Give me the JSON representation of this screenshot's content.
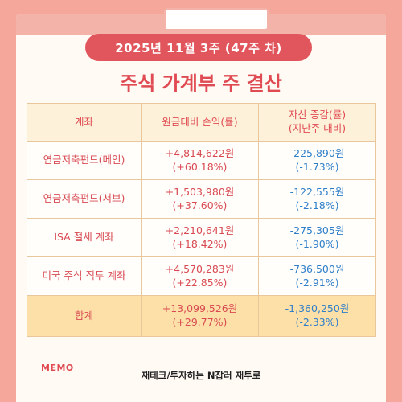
{
  "header": {
    "date_label": "2025년   11월   3주 (47주 차)",
    "title": "주식 가계부 주 결산"
  },
  "table": {
    "columns": [
      "계좌",
      "원금대비 손익(률)",
      "자산 증감(률)\n(지난주 대비)"
    ],
    "rows": [
      {
        "account": "연금저축펀드(메인)",
        "pnl": "+4,814,622원",
        "pnl_rate": "(+60.18%)",
        "change": "-225,890원",
        "change_rate": "(-1.73%)"
      },
      {
        "account": "연금저축펀드(서브)",
        "pnl": "+1,503,980원",
        "pnl_rate": "(+37.60%)",
        "change": "-122,555원",
        "change_rate": "(-2.18%)"
      },
      {
        "account": "ISA 절세 계좌",
        "pnl": "+2,210,641원",
        "pnl_rate": "(+18.42%)",
        "change": "-275,305원",
        "change_rate": "(-1.90%)"
      },
      {
        "account": "미국 주식 직투 계좌",
        "pnl": "+4,570,283원",
        "pnl_rate": "(+22.85%)",
        "change": "-736,500원",
        "change_rate": "(-2.91%)"
      }
    ],
    "total": {
      "account": "합계",
      "pnl": "+13,099,526원",
      "pnl_rate": "(+29.77%)",
      "change": "-1,360,250원",
      "change_rate": "(-2.33%)"
    }
  },
  "memo_label": "MEMO",
  "footer": "재테크/투자하는 N잡러 재투로",
  "colors": {
    "background": "#f4a79a",
    "accent": "#e04a52",
    "positive": "#d94a52",
    "negative": "#2f7ec9",
    "total_row": "#fde0a8"
  }
}
